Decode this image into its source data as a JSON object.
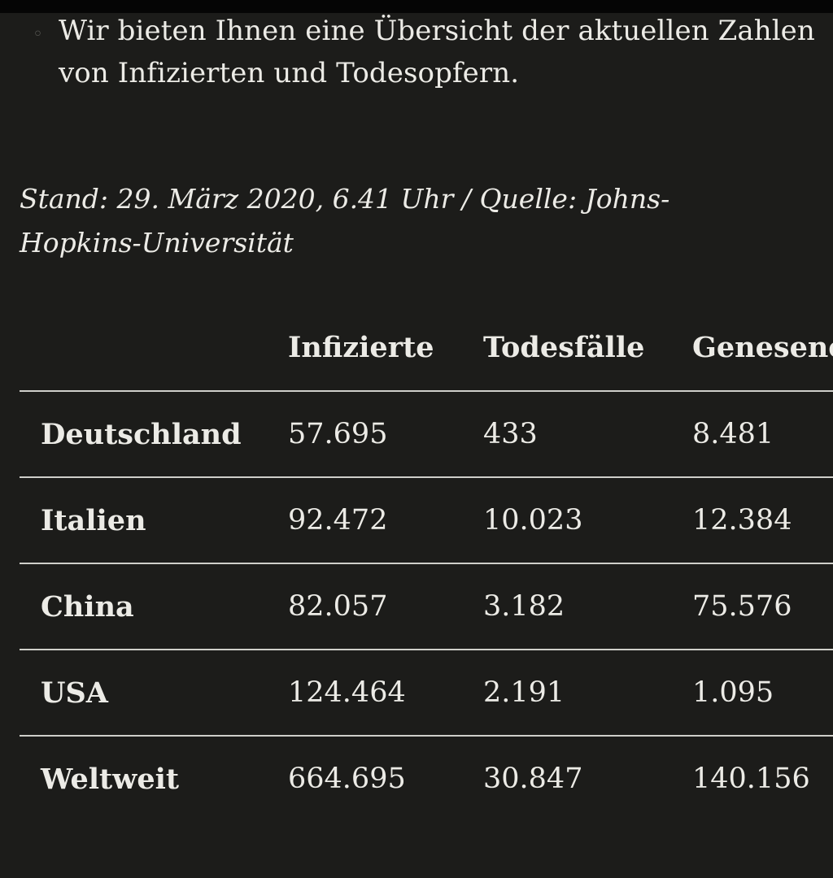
{
  "intro": {
    "text": "Wir bieten Ihnen eine Übersicht der aktuellen Zahlen von Infizierten und Todesopfern."
  },
  "stand": {
    "text": "Stand: 29. März 2020, 6.41 Uhr / Quelle: Johns-Hopkins-Universität"
  },
  "table": {
    "headers": [
      "",
      "Infizierte",
      "Todesfälle",
      "Genesene"
    ],
    "rows": [
      {
        "country": "Deutschland",
        "infizierte": "57.695",
        "todesfaelle": "433",
        "genesene": "8.481"
      },
      {
        "country": "Italien",
        "infizierte": "92.472",
        "todesfaelle": "10.023",
        "genesene": "12.384"
      },
      {
        "country": "China",
        "infizierte": "82.057",
        "todesfaelle": "3.182",
        "genesene": "75.576"
      },
      {
        "country": "USA",
        "infizierte": "124.464",
        "todesfaelle": "2.191",
        "genesene": "1.095"
      },
      {
        "country": "Weltweit",
        "infizierte": "664.695",
        "todesfaelle": "30.847",
        "genesene": "140.156"
      }
    ]
  },
  "colors": {
    "background": "#1c1c1a",
    "text": "#ecebe6",
    "divider": "#cfcfca"
  }
}
